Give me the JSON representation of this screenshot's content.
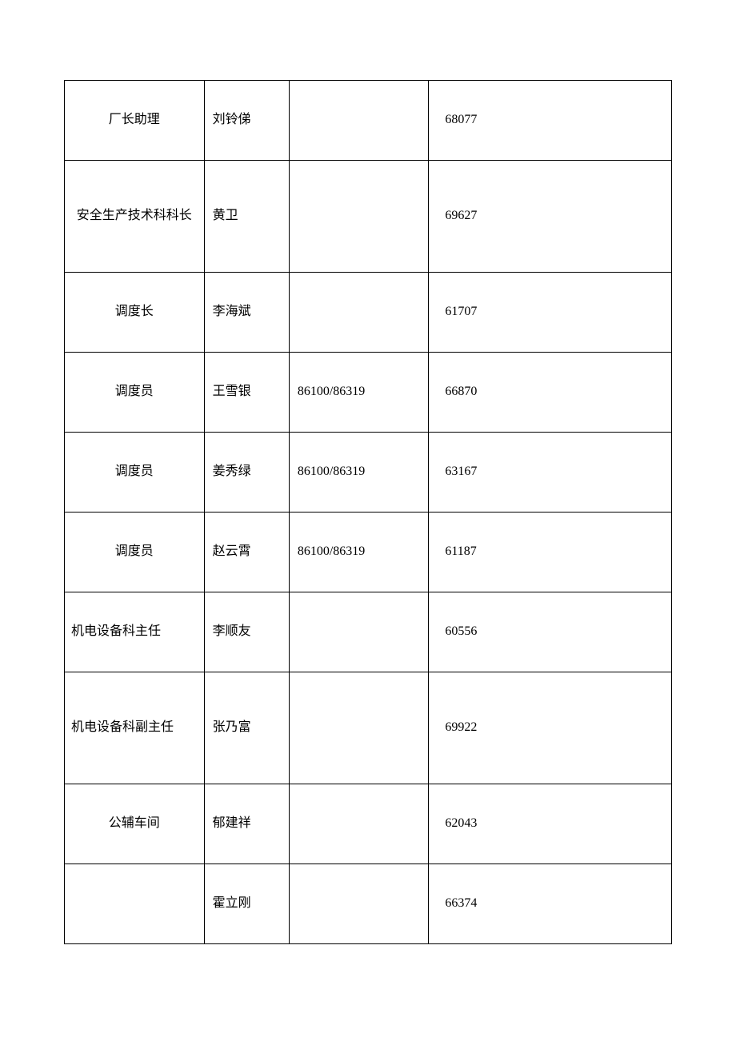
{
  "table": {
    "border_color": "#000000",
    "background_color": "#ffffff",
    "text_color": "#000000",
    "font_size": 16,
    "font_family": "SimSun",
    "columns": [
      {
        "key": "position",
        "width_pct": 23,
        "align": "center"
      },
      {
        "key": "name",
        "width_pct": 14,
        "align": "left"
      },
      {
        "key": "phone",
        "width_pct": 23,
        "align": "left"
      },
      {
        "key": "ext",
        "width_pct": 40,
        "align": "left"
      }
    ],
    "rows": [
      {
        "position": "厂长助理",
        "name": "刘铃俤",
        "phone": "",
        "ext": "68077",
        "position_align": "center",
        "tall": false
      },
      {
        "position": "安全生产技术科科长",
        "name": "黄卫",
        "phone": "",
        "ext": "69627",
        "position_align": "center",
        "tall": true
      },
      {
        "position": "调度长",
        "name": "李海斌",
        "phone": "",
        "ext": "61707",
        "position_align": "center",
        "tall": false
      },
      {
        "position": "调度员",
        "name": "王雪银",
        "phone": "86100/86319",
        "ext": "66870",
        "position_align": "center",
        "tall": false
      },
      {
        "position": "调度员",
        "name": "姜秀绿",
        "phone": "86100/86319",
        "ext": "63167",
        "position_align": "center",
        "tall": false
      },
      {
        "position": "调度员",
        "name": "赵云霄",
        "phone": "86100/86319",
        "ext": "61187",
        "position_align": "center",
        "tall": false
      },
      {
        "position": "机电设备科主任",
        "name": "李顺友",
        "phone": "",
        "ext": "60556",
        "position_align": "left",
        "tall": false
      },
      {
        "position": "机电设备科副主任",
        "name": "张乃富",
        "phone": "",
        "ext": "69922",
        "position_align": "left",
        "tall": true
      },
      {
        "position": "公辅车间",
        "name": "郁建祥",
        "phone": "",
        "ext": "62043",
        "position_align": "center",
        "tall": false
      },
      {
        "position": "",
        "name": "霍立刚",
        "phone": "",
        "ext": "66374",
        "position_align": "center",
        "tall": false
      }
    ]
  }
}
